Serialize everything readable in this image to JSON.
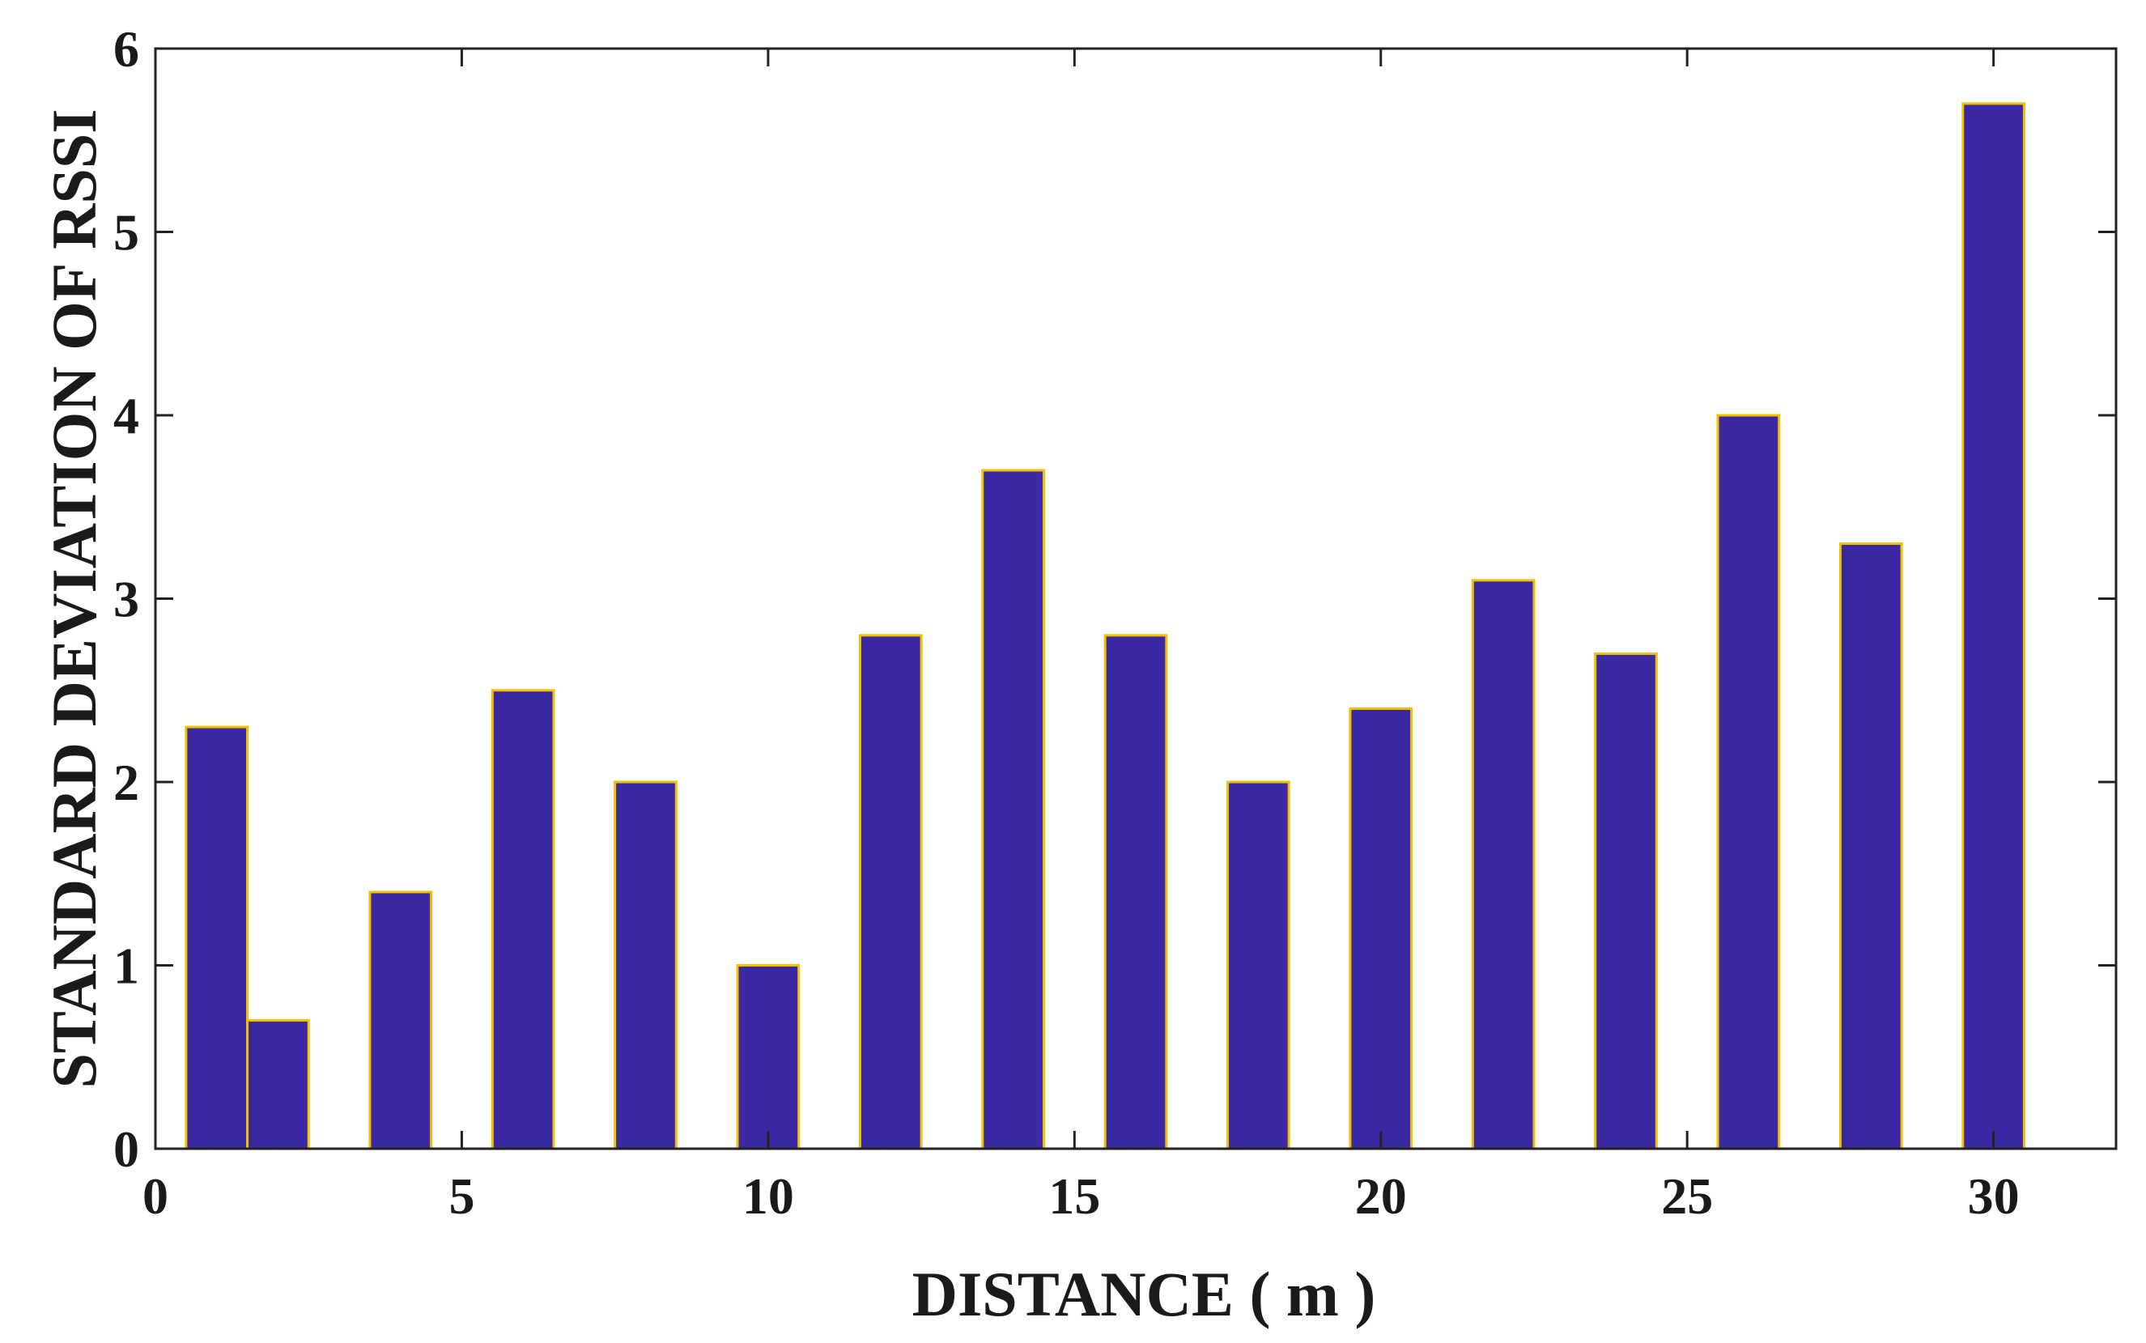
{
  "chart_data": {
    "type": "bar",
    "title": "",
    "xlabel": "DISTANCE ( m )",
    "ylabel": "STANDARD DEVIATION OF RSSI",
    "x": [
      1,
      2,
      4,
      6,
      8,
      10,
      12,
      14,
      16,
      18,
      20,
      22,
      24,
      26,
      28,
      30
    ],
    "values": [
      2.3,
      0.7,
      1.4,
      2.5,
      2.0,
      1.0,
      2.8,
      3.7,
      2.8,
      2.0,
      2.4,
      3.1,
      2.7,
      4.0,
      3.3,
      5.7
    ],
    "xlim": [
      0,
      32
    ],
    "ylim": [
      0,
      6
    ],
    "xticks": [
      0,
      5,
      10,
      15,
      20,
      25,
      30
    ],
    "yticks": [
      0,
      1,
      2,
      3,
      4,
      5,
      6
    ],
    "bar_width": 1.0,
    "grid": false,
    "legend": "none",
    "colors": {
      "bar_fill": "#3b28a3",
      "bar_edge": "#f2c200",
      "axis": "#222222"
    }
  }
}
